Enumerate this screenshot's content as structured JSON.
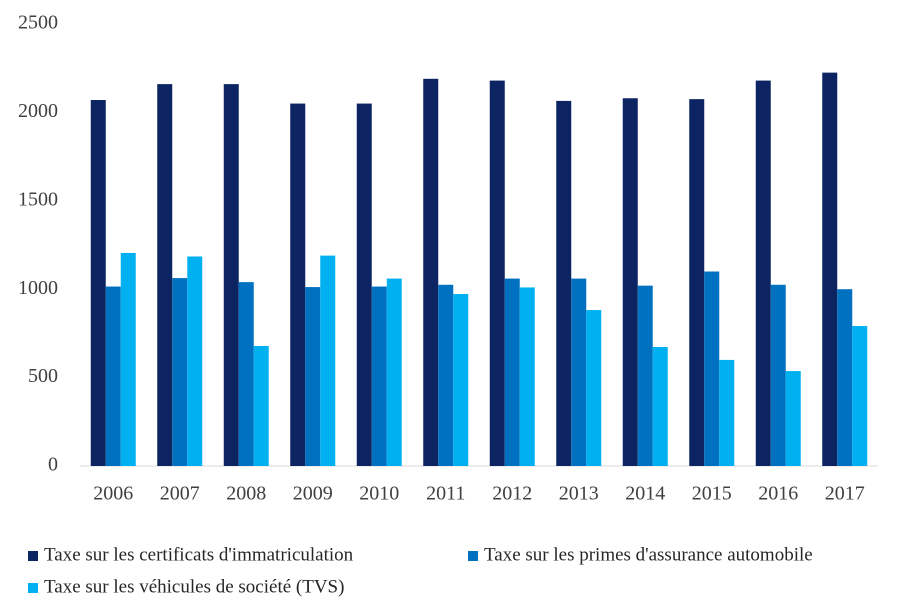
{
  "chart_data": {
    "type": "bar",
    "categories": [
      "2006",
      "2007",
      "2008",
      "2009",
      "2010",
      "2011",
      "2012",
      "2013",
      "2014",
      "2015",
      "2016",
      "2017"
    ],
    "series": [
      {
        "name": "Taxe sur les certificats d'immatriculation",
        "color": "#0c2461",
        "values": [
          2070,
          2160,
          2160,
          2050,
          2050,
          2190,
          2180,
          2065,
          2080,
          2075,
          2180,
          2225
        ]
      },
      {
        "name": "Taxe sur les primes d'assurance automobile",
        "color": "#0070c0",
        "values": [
          1015,
          1063,
          1040,
          1012,
          1015,
          1025,
          1060,
          1060,
          1020,
          1100,
          1025,
          1000
        ]
      },
      {
        "name": "Taxe sur les véhicules de société (TVS)",
        "color": "#00b0f0",
        "values": [
          1205,
          1185,
          679,
          1190,
          1060,
          973,
          1010,
          882,
          673,
          600,
          537,
          792
        ]
      }
    ],
    "ylim": [
      0,
      2500
    ],
    "yticks": [
      0,
      500,
      1000,
      1500,
      2000,
      2500
    ],
    "grid": false
  }
}
